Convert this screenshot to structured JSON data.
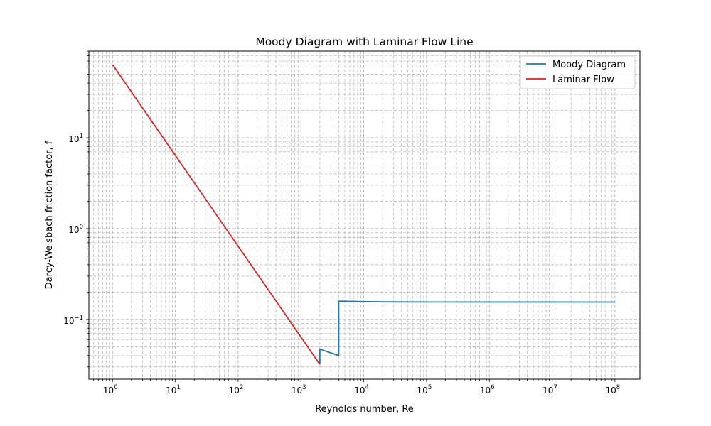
{
  "chart_data": {
    "type": "line",
    "title": "Moody Diagram with Laminar Flow Line",
    "xlabel": "Reynolds number, Re",
    "ylabel": "Darcy-Weisbach friction factor, f",
    "xscale": "log",
    "yscale": "log",
    "xlim": [
      0.42,
      250000000
    ],
    "ylim": [
      0.022,
      90
    ],
    "grid": true,
    "grid_style": "dashed",
    "legend_position": "top-right",
    "x_ticks": [
      {
        "base": "10",
        "exp": "0",
        "value": 1
      },
      {
        "base": "10",
        "exp": "1",
        "value": 10
      },
      {
        "base": "10",
        "exp": "2",
        "value": 100
      },
      {
        "base": "10",
        "exp": "3",
        "value": 1000
      },
      {
        "base": "10",
        "exp": "4",
        "value": 10000
      },
      {
        "base": "10",
        "exp": "5",
        "value": 100000
      },
      {
        "base": "10",
        "exp": "6",
        "value": 1000000
      },
      {
        "base": "10",
        "exp": "7",
        "value": 10000000
      },
      {
        "base": "10",
        "exp": "8",
        "value": 100000000
      }
    ],
    "y_ticks": [
      {
        "base": "10",
        "exp": "−1",
        "value": 0.1
      },
      {
        "base": "10",
        "exp": "0",
        "value": 1
      },
      {
        "base": "10",
        "exp": "1",
        "value": 10
      }
    ],
    "series": [
      {
        "name": "Moody Diagram",
        "color": "#1f77b4",
        "points": [
          [
            2000,
            0.032
          ],
          [
            2000,
            0.047
          ],
          [
            4000,
            0.04
          ],
          [
            4000,
            0.159
          ],
          [
            10000,
            0.157
          ],
          [
            20000,
            0.156
          ],
          [
            100000,
            0.1555
          ],
          [
            1000000,
            0.1553
          ],
          [
            100000000,
            0.1552
          ]
        ]
      },
      {
        "name": "Laminar Flow",
        "color": "#d62728",
        "points": [
          [
            1,
            64
          ],
          [
            2000,
            0.032
          ]
        ]
      }
    ]
  }
}
